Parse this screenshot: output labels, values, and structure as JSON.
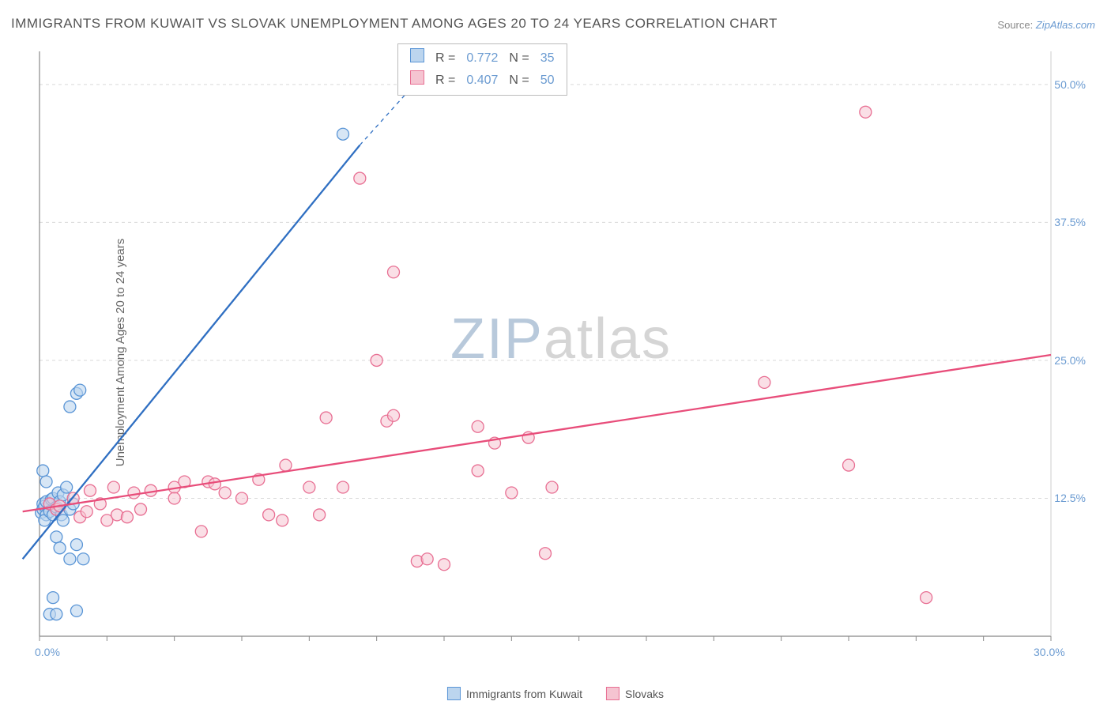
{
  "title": "IMMIGRANTS FROM KUWAIT VS SLOVAK UNEMPLOYMENT AMONG AGES 20 TO 24 YEARS CORRELATION CHART",
  "source_label": "Source:",
  "source_value": "ZipAtlas.com",
  "y_axis_title": "Unemployment Among Ages 20 to 24 years",
  "watermark_a": "ZIP",
  "watermark_b": "atlas",
  "chart": {
    "type": "scatter",
    "xlim": [
      0,
      30
    ],
    "ylim": [
      0,
      53
    ],
    "x_ticks_minor": [
      0,
      2,
      4,
      6,
      8,
      10,
      12,
      14,
      16,
      18,
      20,
      22,
      24,
      26,
      28,
      30
    ],
    "y_gridlines": [
      12.5,
      25.0,
      37.5,
      50.0
    ],
    "x_labels": [
      {
        "v": 0,
        "t": "0.0%"
      },
      {
        "v": 30,
        "t": "30.0%"
      }
    ],
    "y_labels": [
      {
        "v": 12.5,
        "t": "12.5%"
      },
      {
        "v": 25.0,
        "t": "25.0%"
      },
      {
        "v": 37.5,
        "t": "37.5%"
      },
      {
        "v": 50.0,
        "t": "50.0%"
      }
    ],
    "grid_color": "#d9d9d9",
    "grid_dash": "4,4",
    "axis_color": "#888",
    "background_color": "#ffffff",
    "marker_radius": 7.5,
    "marker_stroke_width": 1.3,
    "line_width": 2.3,
    "series": [
      {
        "id": "kuwait",
        "label": "Immigrants from Kuwait",
        "fill_color": "#bcd5ee",
        "stroke_color": "#5a95d6",
        "line_color": "#2f6fc2",
        "fill_opacity": 0.6,
        "R": "0.772",
        "N": "35",
        "points": [
          [
            0.05,
            11.2
          ],
          [
            0.1,
            12.0
          ],
          [
            0.1,
            11.5
          ],
          [
            0.15,
            11.8
          ],
          [
            0.2,
            11.0
          ],
          [
            0.2,
            12.2
          ],
          [
            0.15,
            10.5
          ],
          [
            0.3,
            11.3
          ],
          [
            0.35,
            12.4
          ],
          [
            0.4,
            11.0
          ],
          [
            0.4,
            12.5
          ],
          [
            0.5,
            11.7
          ],
          [
            0.55,
            13.0
          ],
          [
            0.6,
            12.2
          ],
          [
            0.65,
            11.0
          ],
          [
            0.7,
            10.5
          ],
          [
            0.7,
            12.8
          ],
          [
            0.8,
            13.5
          ],
          [
            0.9,
            11.5
          ],
          [
            1.0,
            12.0
          ],
          [
            0.1,
            15.0
          ],
          [
            0.2,
            14.0
          ],
          [
            0.5,
            9.0
          ],
          [
            0.6,
            8.0
          ],
          [
            0.9,
            7.0
          ],
          [
            1.1,
            8.3
          ],
          [
            1.3,
            7.0
          ],
          [
            0.3,
            2.0
          ],
          [
            0.5,
            2.0
          ],
          [
            1.1,
            2.3
          ],
          [
            0.4,
            3.5
          ],
          [
            0.9,
            20.8
          ],
          [
            1.1,
            22.0
          ],
          [
            1.2,
            22.3
          ],
          [
            9.0,
            45.5
          ]
        ],
        "trend": {
          "x1": -0.5,
          "y1": 7.0,
          "x2": 9.5,
          "y2": 44.5
        },
        "trend_ext": {
          "x1": 9.5,
          "y1": 44.5,
          "x2": 12.0,
          "y2": 53.0
        }
      },
      {
        "id": "slovaks",
        "label": "Slovaks",
        "fill_color": "#f5c4d1",
        "stroke_color": "#e86f93",
        "line_color": "#e84d7a",
        "fill_opacity": 0.55,
        "R": "0.407",
        "N": "50",
        "points": [
          [
            0.3,
            12.0
          ],
          [
            0.5,
            11.5
          ],
          [
            0.6,
            11.8
          ],
          [
            1.0,
            12.5
          ],
          [
            1.2,
            10.8
          ],
          [
            1.4,
            11.3
          ],
          [
            1.5,
            13.2
          ],
          [
            1.8,
            12.0
          ],
          [
            2.0,
            10.5
          ],
          [
            2.2,
            13.5
          ],
          [
            2.3,
            11.0
          ],
          [
            2.6,
            10.8
          ],
          [
            2.8,
            13.0
          ],
          [
            3.0,
            11.5
          ],
          [
            3.3,
            13.2
          ],
          [
            4.0,
            13.5
          ],
          [
            4.0,
            12.5
          ],
          [
            4.3,
            14.0
          ],
          [
            4.8,
            9.5
          ],
          [
            5.0,
            14.0
          ],
          [
            5.2,
            13.8
          ],
          [
            5.5,
            13.0
          ],
          [
            6.0,
            12.5
          ],
          [
            6.5,
            14.2
          ],
          [
            6.8,
            11.0
          ],
          [
            7.2,
            10.5
          ],
          [
            7.3,
            15.5
          ],
          [
            8.0,
            13.5
          ],
          [
            8.3,
            11.0
          ],
          [
            8.5,
            19.8
          ],
          [
            9.0,
            13.5
          ],
          [
            9.5,
            41.5
          ],
          [
            10.0,
            25.0
          ],
          [
            10.3,
            19.5
          ],
          [
            10.5,
            20.0
          ],
          [
            11.2,
            6.8
          ],
          [
            11.5,
            7.0
          ],
          [
            12.0,
            6.5
          ],
          [
            13.0,
            19.0
          ],
          [
            13.0,
            15.0
          ],
          [
            13.5,
            17.5
          ],
          [
            14.0,
            13.0
          ],
          [
            14.5,
            18.0
          ],
          [
            15.0,
            7.5
          ],
          [
            15.2,
            13.5
          ],
          [
            21.5,
            23.0
          ],
          [
            24.0,
            15.5
          ],
          [
            24.5,
            47.5
          ],
          [
            26.3,
            3.5
          ],
          [
            10.5,
            33.0
          ]
        ],
        "trend": {
          "x1": -0.5,
          "y1": 11.3,
          "x2": 30.0,
          "y2": 25.5
        }
      }
    ]
  },
  "legend_top": {
    "r_prefix": "R  =",
    "n_prefix": "N  ="
  }
}
